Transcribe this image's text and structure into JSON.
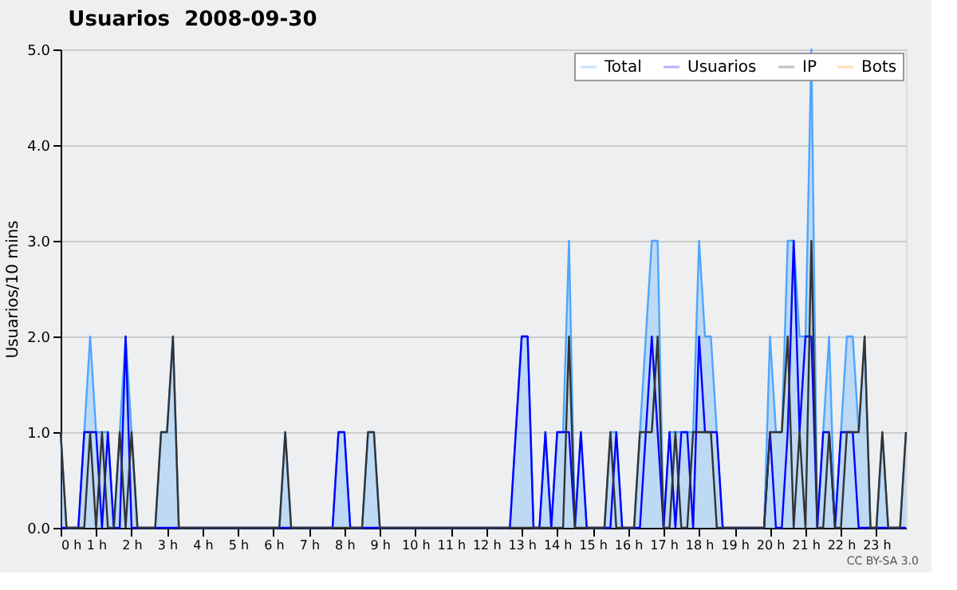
{
  "chart_data": {
    "type": "line",
    "title": "Usuarios  2008-09-30",
    "ylabel": "Usuarios/10 mins",
    "annotations": [
      "CC BY-SA 3.0"
    ],
    "x": [
      0,
      0.167,
      0.333,
      0.5,
      0.667,
      0.833,
      1,
      1.167,
      1.333,
      1.5,
      1.667,
      1.833,
      2,
      2.167,
      2.333,
      2.5,
      2.667,
      2.833,
      3,
      3.167,
      3.333,
      3.5,
      3.667,
      3.833,
      4,
      4.167,
      4.333,
      4.5,
      4.667,
      4.833,
      5,
      5.167,
      5.333,
      5.5,
      5.667,
      5.833,
      6,
      6.167,
      6.333,
      6.5,
      6.667,
      6.833,
      7,
      7.167,
      7.333,
      7.5,
      7.667,
      7.833,
      8,
      8.167,
      8.333,
      8.5,
      8.667,
      8.833,
      9,
      9.167,
      9.333,
      9.5,
      9.667,
      9.833,
      10,
      10.167,
      10.333,
      10.5,
      10.667,
      10.833,
      11,
      11.167,
      11.333,
      11.5,
      11.667,
      11.833,
      12,
      12.167,
      12.333,
      12.5,
      12.667,
      12.833,
      13,
      13.167,
      13.333,
      13.5,
      13.667,
      13.833,
      14,
      14.167,
      14.333,
      14.5,
      14.667,
      14.833,
      15,
      15.167,
      15.333,
      15.5,
      15.667,
      15.833,
      16,
      16.167,
      16.333,
      16.5,
      16.667,
      16.833,
      17,
      17.167,
      17.333,
      17.5,
      17.667,
      17.833,
      18,
      18.167,
      18.333,
      18.5,
      18.667,
      18.833,
      19,
      19.167,
      19.333,
      19.5,
      19.667,
      19.833,
      20,
      20.167,
      20.333,
      20.5,
      20.667,
      20.833,
      21,
      21.167,
      21.333,
      21.5,
      21.667,
      21.833,
      22,
      22.167,
      22.333,
      22.5,
      22.667,
      22.833,
      23,
      23.167,
      23.333,
      23.5,
      23.667,
      23.833
    ],
    "xlim": [
      0,
      23.833
    ],
    "xticks": [
      {
        "value": 0,
        "label": "0 h"
      },
      {
        "value": 1,
        "label": "1 h"
      },
      {
        "value": 2,
        "label": "2 h"
      },
      {
        "value": 3,
        "label": "3 h"
      },
      {
        "value": 4,
        "label": "4 h"
      },
      {
        "value": 5,
        "label": "5 h"
      },
      {
        "value": 6,
        "label": "6 h"
      },
      {
        "value": 7,
        "label": "7 h"
      },
      {
        "value": 8,
        "label": "8 h"
      },
      {
        "value": 9,
        "label": "9 h"
      },
      {
        "value": 10,
        "label": "10 h"
      },
      {
        "value": 11,
        "label": "11 h"
      },
      {
        "value": 12,
        "label": "12 h"
      },
      {
        "value": 13,
        "label": "13 h"
      },
      {
        "value": 14,
        "label": "14 h"
      },
      {
        "value": 15,
        "label": "15 h"
      },
      {
        "value": 16,
        "label": "16 h"
      },
      {
        "value": 17,
        "label": "17 h"
      },
      {
        "value": 18,
        "label": "18 h"
      },
      {
        "value": 19,
        "label": "19 h"
      },
      {
        "value": 20,
        "label": "20 h"
      },
      {
        "value": 21,
        "label": "21 h"
      },
      {
        "value": 22,
        "label": "22 h"
      },
      {
        "value": 23,
        "label": "23 h"
      }
    ],
    "ylim": [
      0,
      5
    ],
    "yticks": [
      {
        "value": 0,
        "label": "0.0"
      },
      {
        "value": 1,
        "label": "1.0"
      },
      {
        "value": 2,
        "label": "2.0"
      },
      {
        "value": 3,
        "label": "3.0"
      },
      {
        "value": 4,
        "label": "4.0"
      },
      {
        "value": 5,
        "label": "5.0"
      }
    ],
    "grid": "y",
    "legend": "top right",
    "series": [
      {
        "name": "Total",
        "type": "area",
        "color": "#4da6ff",
        "values": [
          1,
          0,
          0,
          0,
          1,
          2,
          1,
          1,
          1,
          0,
          1,
          2,
          1,
          0,
          0,
          0,
          0,
          1,
          1,
          2,
          0,
          0,
          0,
          0,
          0,
          0,
          0,
          0,
          0,
          0,
          0,
          0,
          0,
          0,
          0,
          0,
          0,
          0,
          1,
          0,
          0,
          0,
          0,
          0,
          0,
          0,
          0,
          1,
          1,
          0,
          0,
          0,
          1,
          1,
          0,
          0,
          0,
          0,
          0,
          0,
          0,
          0,
          0,
          0,
          0,
          0,
          0,
          0,
          0,
          0,
          0,
          0,
          0,
          0,
          0,
          0,
          0,
          1,
          2,
          2,
          0,
          0,
          1,
          0,
          1,
          1,
          3,
          0,
          1,
          0,
          0,
          0,
          0,
          1,
          1,
          0,
          0,
          0,
          1,
          2,
          3,
          3,
          0,
          1,
          1,
          1,
          1,
          1,
          3,
          2,
          2,
          1,
          0,
          0,
          0,
          0,
          0,
          0,
          0,
          0,
          2,
          1,
          1,
          3,
          3,
          2,
          2,
          5,
          0,
          1,
          2,
          0,
          1,
          2,
          2,
          1,
          2,
          0,
          0,
          1,
          0,
          0,
          0,
          1
        ]
      },
      {
        "name": "Usuarios",
        "color": "#0000ff",
        "values": [
          0,
          0,
          0,
          0,
          1,
          1,
          1,
          0,
          1,
          0,
          0,
          2,
          0,
          0,
          0,
          0,
          0,
          0,
          0,
          0,
          0,
          0,
          0,
          0,
          0,
          0,
          0,
          0,
          0,
          0,
          0,
          0,
          0,
          0,
          0,
          0,
          0,
          0,
          0,
          0,
          0,
          0,
          0,
          0,
          0,
          0,
          0,
          1,
          1,
          0,
          0,
          0,
          0,
          0,
          0,
          0,
          0,
          0,
          0,
          0,
          0,
          0,
          0,
          0,
          0,
          0,
          0,
          0,
          0,
          0,
          0,
          0,
          0,
          0,
          0,
          0,
          0,
          1,
          2,
          2,
          0,
          0,
          1,
          0,
          1,
          1,
          1,
          0,
          1,
          0,
          0,
          0,
          0,
          0,
          1,
          0,
          0,
          0,
          0,
          1,
          2,
          1,
          0,
          1,
          0,
          1,
          1,
          0,
          2,
          1,
          1,
          1,
          0,
          0,
          0,
          0,
          0,
          0,
          0,
          0,
          1,
          0,
          0,
          1,
          3,
          1,
          2,
          2,
          0,
          1,
          1,
          0,
          1,
          1,
          1,
          0,
          0,
          0,
          0,
          0,
          0,
          0,
          0,
          0
        ]
      },
      {
        "name": "IP",
        "color": "#333333",
        "values": [
          1,
          0,
          0,
          0,
          0,
          1,
          0,
          1,
          0,
          0,
          1,
          0,
          1,
          0,
          0,
          0,
          0,
          1,
          1,
          2,
          0,
          0,
          0,
          0,
          0,
          0,
          0,
          0,
          0,
          0,
          0,
          0,
          0,
          0,
          0,
          0,
          0,
          0,
          1,
          0,
          0,
          0,
          0,
          0,
          0,
          0,
          0,
          0,
          0,
          0,
          0,
          0,
          1,
          1,
          0,
          0,
          0,
          0,
          0,
          0,
          0,
          0,
          0,
          0,
          0,
          0,
          0,
          0,
          0,
          0,
          0,
          0,
          0,
          0,
          0,
          0,
          0,
          0,
          0,
          0,
          0,
          0,
          0,
          0,
          0,
          0,
          2,
          0,
          0,
          0,
          0,
          0,
          0,
          1,
          0,
          0,
          0,
          0,
          1,
          1,
          1,
          2,
          0,
          0,
          1,
          0,
          0,
          1,
          1,
          1,
          1,
          0,
          0,
          0,
          0,
          0,
          0,
          0,
          0,
          0,
          1,
          1,
          1,
          2,
          0,
          1,
          0,
          3,
          0,
          0,
          1,
          0,
          0,
          1,
          1,
          1,
          2,
          0,
          0,
          1,
          0,
          0,
          0,
          1
        ]
      },
      {
        "name": "Bots",
        "color": "#ff9900",
        "values": [
          null,
          null,
          null,
          null,
          null,
          null,
          null,
          null,
          null,
          null,
          null,
          null,
          null,
          null,
          null,
          null,
          null,
          null,
          null,
          null,
          null,
          null,
          null,
          null,
          null,
          null,
          null,
          null,
          null,
          null,
          null,
          null,
          null,
          null,
          null,
          null,
          null,
          null,
          null,
          null,
          null,
          null,
          null,
          null,
          null,
          null,
          null,
          null,
          null,
          null,
          null,
          null,
          null,
          null,
          null,
          null,
          null,
          null,
          null,
          null,
          null,
          null,
          null,
          null,
          null,
          null,
          null,
          null,
          null,
          null,
          null,
          null,
          null,
          null,
          null,
          null,
          null,
          null,
          null,
          null,
          null,
          null,
          null,
          null,
          null,
          null,
          null,
          null,
          null,
          null,
          null,
          null,
          null,
          null,
          null,
          null,
          null,
          null,
          null,
          null,
          null,
          null,
          null,
          null,
          null,
          null,
          null,
          null,
          null,
          null,
          null,
          null,
          null,
          null,
          null,
          null,
          null,
          null,
          null,
          null,
          null,
          null,
          null,
          null,
          null,
          null,
          null,
          null,
          null,
          null,
          null,
          null,
          null,
          null,
          null,
          null,
          null,
          null,
          null,
          null,
          null,
          null,
          null,
          null
        ]
      }
    ]
  }
}
